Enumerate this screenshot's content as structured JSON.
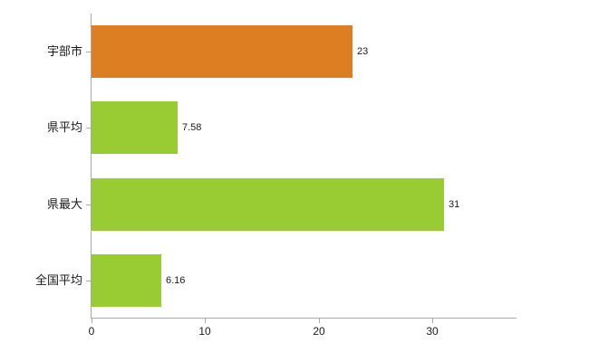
{
  "chart_data": {
    "type": "bar",
    "orientation": "horizontal",
    "title": "",
    "xlabel": "",
    "ylabel": "",
    "categories": [
      "宇部市",
      "県平均",
      "県最大",
      "全国平均"
    ],
    "values": [
      23,
      7.58,
      31,
      6.16
    ],
    "value_labels": [
      "23",
      "7.58",
      "31",
      "6.16"
    ],
    "bar_colors": [
      "#dd7e23",
      "#99cc32",
      "#99cc32",
      "#99cc32"
    ],
    "xlim": [
      0,
      37.5
    ],
    "x_ticks": [
      0,
      10,
      20,
      30
    ],
    "grid": false,
    "legend": null,
    "axis_color": "#a9a9a9",
    "background": "#ffffff"
  }
}
